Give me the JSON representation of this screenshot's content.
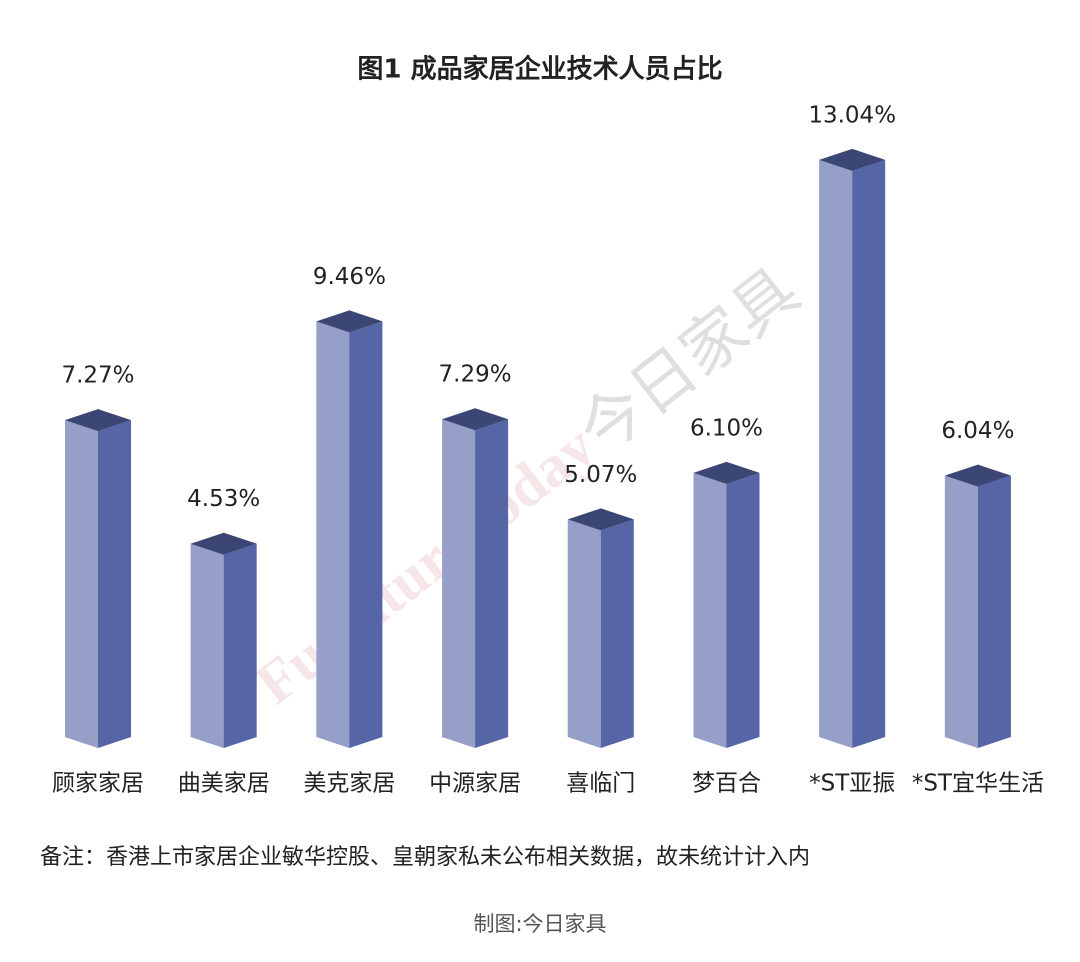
{
  "chart_data": {
    "type": "bar3d",
    "title": "图1 成品家居企业技术人员占比",
    "categories": [
      "顾家家居",
      "曲美家居",
      "美克家居",
      "中源家居",
      "喜临门",
      "梦百合",
      "*ST亚振",
      "*ST宜华生活"
    ],
    "values": [
      7.27,
      4.53,
      9.46,
      7.29,
      5.07,
      6.1,
      13.04,
      6.04
    ],
    "value_labels": [
      "7.27%",
      "4.53%",
      "9.46%",
      "7.29%",
      "5.07%",
      "6.10%",
      "13.04%",
      "6.04%"
    ],
    "color": "#5565a6",
    "note": "备注：香港上市家居企业敏华控股、皇朝家私未公布相关数据，故未统计计入内",
    "source": "制图:今日家具",
    "watermark": [
      "FurnitureToday",
      "今日家具"
    ]
  }
}
